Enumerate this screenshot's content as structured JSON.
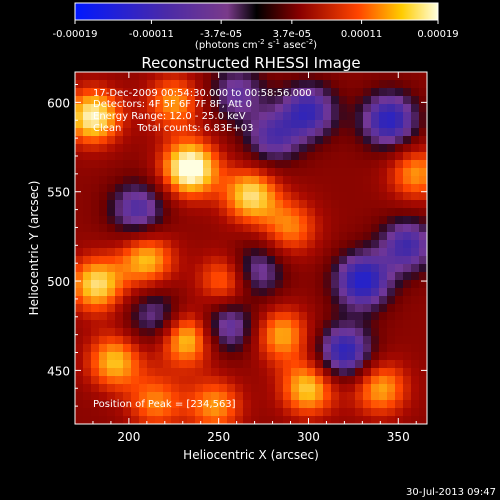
{
  "colorbar": {
    "tick_labels": [
      "-0.00019",
      "-0.00011",
      "-3.7e-05",
      "3.7e-05",
      "0.00011",
      "0.00019"
    ],
    "unit_parts": {
      "a": "(photons cm",
      "b": "-2",
      "c": " s",
      "d": "-1",
      "e": " asec",
      "f": "-2",
      "g": ")"
    }
  },
  "chart_data": {
    "type": "heatmap",
    "title": "Reconstructed RHESSI Image",
    "xlabel": "Heliocentric X (arcsec)",
    "ylabel": "Heliocentric Y (arcsec)",
    "xlim": [
      170,
      366
    ],
    "ylim": [
      420,
      617
    ],
    "x_ticks": [
      "200",
      "250",
      "300",
      "350"
    ],
    "y_ticks": [
      "450",
      "500",
      "550",
      "600"
    ],
    "color_range": [
      -0.00019,
      0.00019
    ],
    "annotations": [
      "17-Dec-2009 00:54:30.000 to 00:58:56.000",
      "Detectors: 4F 5F 6F 7F 8F, Att 0",
      "Energy Range: 12.0 - 25.0 keV",
      "Clean     Total counts: 6.83E+03"
    ],
    "peak_label": "Position of Peak = [234,563]",
    "peak_position": [
      234,
      563
    ],
    "blobs": [
      {
        "x": 234,
        "y": 563,
        "v": 1.0
      },
      {
        "x": 180,
        "y": 592,
        "v": 0.85
      },
      {
        "x": 268,
        "y": 548,
        "v": 0.75
      },
      {
        "x": 182,
        "y": 498,
        "v": 0.75
      },
      {
        "x": 210,
        "y": 512,
        "v": 0.65
      },
      {
        "x": 232,
        "y": 468,
        "v": 0.75
      },
      {
        "x": 192,
        "y": 455,
        "v": 0.65
      },
      {
        "x": 255,
        "y": 500,
        "v": 0.6
      },
      {
        "x": 285,
        "y": 470,
        "v": 0.6
      },
      {
        "x": 300,
        "y": 440,
        "v": 0.7
      },
      {
        "x": 340,
        "y": 440,
        "v": 0.6
      },
      {
        "x": 360,
        "y": 560,
        "v": 0.55
      },
      {
        "x": 215,
        "y": 432,
        "v": 0.5
      },
      {
        "x": 248,
        "y": 430,
        "v": 0.55
      },
      {
        "x": 290,
        "y": 530,
        "v": 0.5
      },
      {
        "x": 225,
        "y": 600,
        "v": 0.55
      },
      {
        "x": 330,
        "y": 500,
        "v": -0.85
      },
      {
        "x": 300,
        "y": 595,
        "v": -0.7
      },
      {
        "x": 345,
        "y": 590,
        "v": -0.8
      },
      {
        "x": 320,
        "y": 460,
        "v": -0.8
      },
      {
        "x": 270,
        "y": 505,
        "v": -0.6
      },
      {
        "x": 205,
        "y": 540,
        "v": -0.6
      },
      {
        "x": 280,
        "y": 580,
        "v": -0.55
      },
      {
        "x": 255,
        "y": 475,
        "v": -0.6
      },
      {
        "x": 355,
        "y": 520,
        "v": -0.65
      },
      {
        "x": 215,
        "y": 480,
        "v": -0.5
      },
      {
        "x": 260,
        "y": 605,
        "v": -0.5
      }
    ]
  },
  "footer": {
    "date": "30-Jul-2013 09:47"
  }
}
